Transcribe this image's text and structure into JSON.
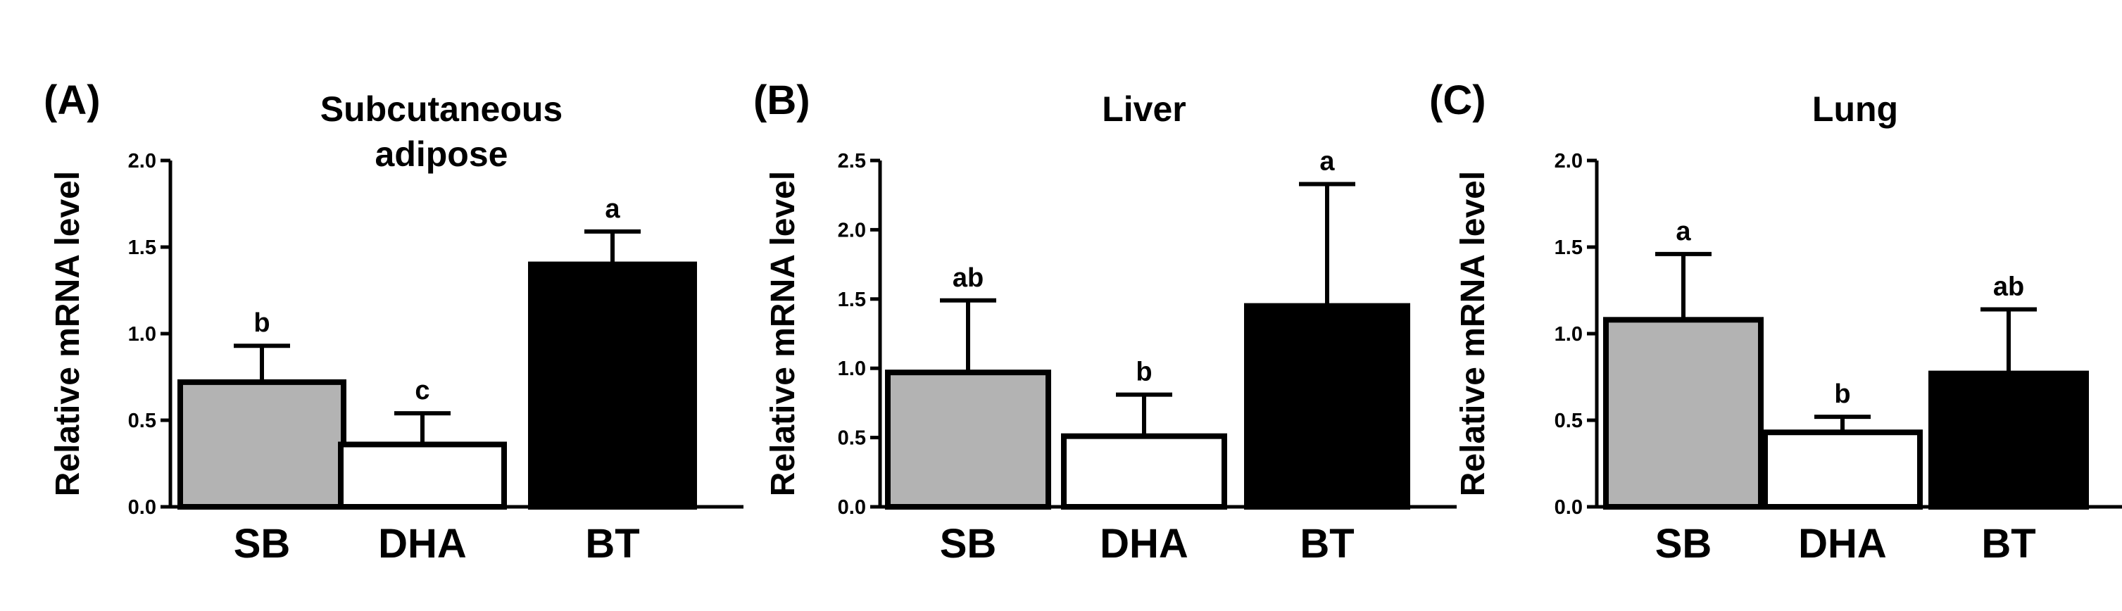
{
  "colors": {
    "SB": "#b3b3b3",
    "DHA": "#ffffff",
    "BT": "#000000",
    "axis": "#000000"
  },
  "chart_data": [
    {
      "type": "bar",
      "panel": "(A)",
      "title": [
        "Subcutaneous",
        "adipose"
      ],
      "ylabel": "Relative mRNA level",
      "categories": [
        "SB",
        "DHA",
        "BT"
      ],
      "values": [
        0.72,
        0.36,
        1.4
      ],
      "errors": [
        0.21,
        0.18,
        0.19
      ],
      "significance": [
        "b",
        "c",
        "a"
      ],
      "ylim": [
        0,
        2.0
      ],
      "yticks": [
        0.0,
        0.5,
        1.0,
        1.5,
        2.0
      ],
      "ytick_labels": [
        "0.0",
        "0.5",
        "1.0",
        "1.5",
        "2.0"
      ]
    },
    {
      "type": "bar",
      "panel": "(B)",
      "title": [
        "Liver"
      ],
      "ylabel": "Relative mRNA level",
      "categories": [
        "SB",
        "DHA",
        "BT"
      ],
      "values": [
        0.97,
        0.51,
        1.45
      ],
      "errors": [
        0.52,
        0.3,
        0.88
      ],
      "significance": [
        "ab",
        "b",
        "a"
      ],
      "ylim": [
        0,
        2.5
      ],
      "yticks": [
        0.0,
        0.5,
        1.0,
        1.5,
        2.0,
        2.5
      ],
      "ytick_labels": [
        "0.0",
        "0.5",
        "1.0",
        "1.5",
        "2.0",
        "2.5"
      ]
    },
    {
      "type": "bar",
      "panel": "(C)",
      "title": [
        "Lung"
      ],
      "ylabel": "Relative mRNA level",
      "categories": [
        "SB",
        "DHA",
        "BT"
      ],
      "values": [
        1.08,
        0.43,
        0.77
      ],
      "errors": [
        0.38,
        0.09,
        0.37
      ],
      "significance": [
        "a",
        "b",
        "ab"
      ],
      "ylim": [
        0,
        2.0
      ],
      "yticks": [
        0.0,
        0.5,
        1.0,
        1.5,
        2.0
      ],
      "ytick_labels": [
        "0.0",
        "0.5",
        "1.0",
        "1.5",
        "2.0"
      ]
    }
  ]
}
